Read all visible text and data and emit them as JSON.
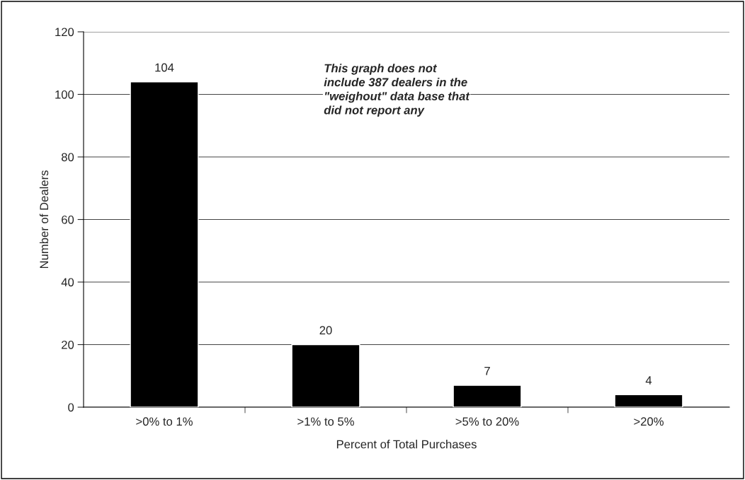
{
  "chart_data": {
    "type": "bar",
    "categories": [
      ">0% to 1%",
      ">1% to 5%",
      ">5% to 20%",
      ">20%"
    ],
    "values": [
      104,
      20,
      7,
      4
    ],
    "color": "#000000",
    "xlabel": "Percent of Total Purchases",
    "ylabel": "Number of Dealers",
    "ylim": [
      0,
      120
    ],
    "yticks": [
      0,
      20,
      40,
      60,
      80,
      100,
      120
    ],
    "grid": "y",
    "data_labels": true,
    "annotations": [
      "This graph does not include 387 dealers in the \"weighout\" data base that did not report any"
    ]
  }
}
